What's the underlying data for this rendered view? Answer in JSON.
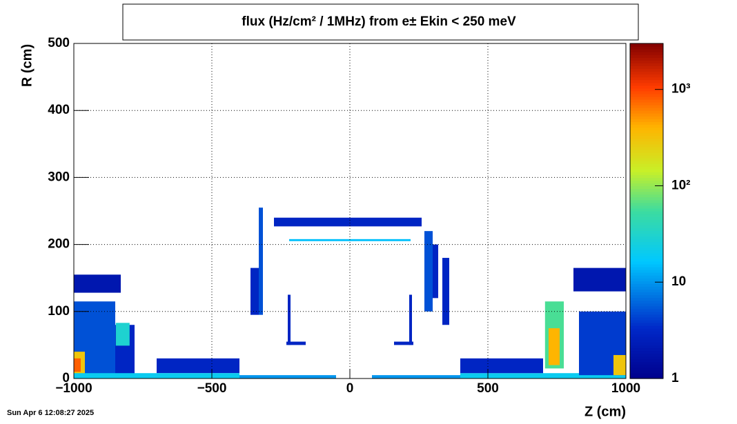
{
  "chart_data": {
    "type": "heatmap",
    "title": "flux (Hz/cm² / 1MHz) from  e±  Ekin < 250 meV",
    "x_label": "Z (cm)",
    "y_label": "R (cm)",
    "timestamp": "Sun Apr  6 12:08:27 2025",
    "xlim": [
      -1000,
      1000
    ],
    "xticks": [
      {
        "value": -1000,
        "label": "−1000"
      },
      {
        "value": -500,
        "label": "−500"
      },
      0,
      500,
      1000
    ],
    "ylim": [
      0,
      500
    ],
    "yticks": [
      0,
      100,
      200,
      300,
      400,
      500
    ],
    "zlim": [
      1,
      3000
    ],
    "zscale": "log",
    "zticks": [
      1,
      10,
      {
        "value": 100,
        "label": "10²"
      },
      {
        "value": 1000,
        "label": "10³"
      }
    ],
    "grid": true,
    "regions": [
      {
        "z": [
          -1000,
          -830
        ],
        "r": [
          128,
          155
        ],
        "value": 2
      },
      {
        "z": [
          -1000,
          -850
        ],
        "r": [
          5,
          115
        ],
        "value": 5
      },
      {
        "z": [
          -850,
          -780
        ],
        "r": [
          5,
          80
        ],
        "value": 3
      },
      {
        "z": [
          -848,
          -798
        ],
        "r": [
          49,
          83
        ],
        "value": 30
      },
      {
        "z": [
          -1000,
          -960
        ],
        "r": [
          5,
          40
        ],
        "value": 300
      },
      {
        "z": [
          -1000,
          -975
        ],
        "r": [
          10,
          30
        ],
        "value": 800
      },
      {
        "z": [
          -700,
          -400
        ],
        "r": [
          8,
          30
        ],
        "value": 3
      },
      {
        "z": [
          -1000,
          -400
        ],
        "r": [
          0,
          8
        ],
        "value": 20
      },
      {
        "z": [
          -400,
          -50
        ],
        "r": [
          0,
          5
        ],
        "value": 10
      },
      {
        "z": [
          80,
          480
        ],
        "r": [
          0,
          5
        ],
        "value": 10
      },
      {
        "z": [
          400,
          1000
        ],
        "r": [
          0,
          8
        ],
        "value": 20
      },
      {
        "z": [
          400,
          700
        ],
        "r": [
          8,
          30
        ],
        "value": 3
      },
      {
        "z": [
          -275,
          260
        ],
        "r": [
          227,
          240
        ],
        "value": 3
      },
      {
        "z": [
          -220,
          220
        ],
        "r": [
          205,
          208
        ],
        "value": 15
      },
      {
        "z": [
          -330,
          -315
        ],
        "r": [
          95,
          255
        ],
        "value": 5
      },
      {
        "z": [
          -360,
          -330
        ],
        "r": [
          95,
          165
        ],
        "value": 3
      },
      {
        "z": [
          270,
          300
        ],
        "r": [
          100,
          220
        ],
        "value": 5
      },
      {
        "z": [
          300,
          320
        ],
        "r": [
          120,
          200
        ],
        "value": 3
      },
      {
        "z": [
          335,
          360
        ],
        "r": [
          80,
          180
        ],
        "value": 3
      },
      {
        "z": [
          -225,
          -215
        ],
        "r": [
          50,
          125
        ],
        "value": 3
      },
      {
        "z": [
          215,
          225
        ],
        "r": [
          50,
          125
        ],
        "value": 3
      },
      {
        "z": [
          -230,
          -160
        ],
        "r": [
          50,
          55
        ],
        "value": 3
      },
      {
        "z": [
          160,
          230
        ],
        "r": [
          50,
          55
        ],
        "value": 3
      },
      {
        "z": [
          810,
          1000
        ],
        "r": [
          130,
          165
        ],
        "value": 2
      },
      {
        "z": [
          830,
          1000
        ],
        "r": [
          5,
          100
        ],
        "value": 4
      },
      {
        "z": [
          707,
          775
        ],
        "r": [
          15,
          115
        ],
        "value": 60
      },
      {
        "z": [
          720,
          760
        ],
        "r": [
          20,
          75
        ],
        "value": 400
      },
      {
        "z": [
          955,
          1000
        ],
        "r": [
          5,
          35
        ],
        "value": 300
      }
    ]
  }
}
